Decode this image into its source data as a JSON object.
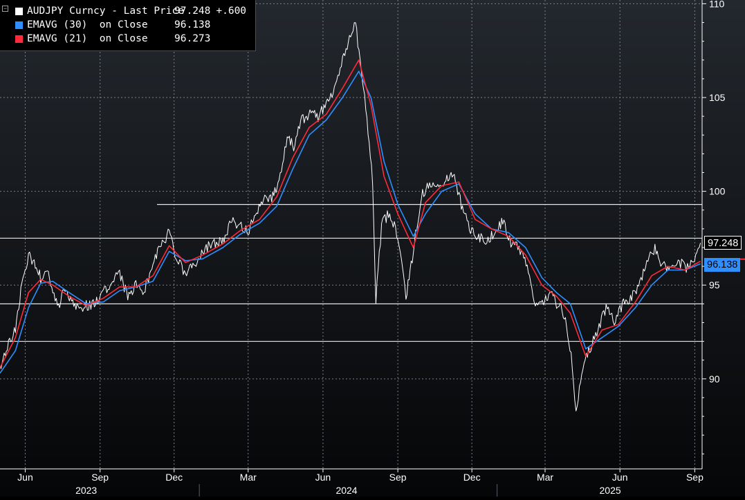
{
  "legend": {
    "rows": [
      {
        "label": "AUDJPY Curncy - Last Price",
        "value": "97.248",
        "extra": "+.600",
        "color": "#ffffff"
      },
      {
        "label": "EMAVG (30)  on Close",
        "value": "96.138",
        "extra": "",
        "color": "#2f8fff"
      },
      {
        "label": "EMAVG (21)  on Close",
        "value": "96.273",
        "extra": "",
        "color": "#ff2a3a"
      }
    ]
  },
  "tags": {
    "last": {
      "text": "97.248",
      "value": 97.248,
      "bg": "#000000",
      "fg": "#ffffff"
    },
    "ema30": {
      "text": "96.138",
      "value": 96.138,
      "bg": "#2f8fff",
      "fg": "#000000"
    },
    "ema21": {
      "value": 96.273,
      "color": "#ff2a3a"
    }
  },
  "chart_data": {
    "type": "line",
    "ylim": [
      85.2,
      110.2
    ],
    "y_ticks": [
      90,
      95,
      100,
      105,
      110
    ],
    "y_tick_labels": [
      "90",
      "95",
      "100",
      "105",
      "110"
    ],
    "x_start": "2023-05-01",
    "x_end": "2025-09-10",
    "months": [
      {
        "label": "Jun",
        "date": "2023-06-01"
      },
      {
        "label": "Sep",
        "date": "2023-09-01"
      },
      {
        "label": "Dec",
        "date": "2023-12-01"
      },
      {
        "label": "Mar",
        "date": "2024-03-01"
      },
      {
        "label": "Jun",
        "date": "2024-06-01"
      },
      {
        "label": "Sep",
        "date": "2024-09-01"
      },
      {
        "label": "Dec",
        "date": "2024-12-01"
      },
      {
        "label": "Mar",
        "date": "2025-03-01"
      },
      {
        "label": "Jun",
        "date": "2025-06-01"
      },
      {
        "label": "Sep",
        "date": "2025-09-01"
      }
    ],
    "years": [
      {
        "label": "2023",
        "date": "2023-08-15"
      },
      {
        "label": "2024",
        "date": "2024-06-30"
      },
      {
        "label": "2025",
        "date": "2025-05-20"
      }
    ],
    "year_separators": [
      "2024-01-01",
      "2025-01-01"
    ],
    "horizontal_levels": [
      {
        "value": 97.5,
        "from": "2023-05-01"
      },
      {
        "value": 99.3,
        "from": "2023-11-10"
      },
      {
        "value": 94.0,
        "from": "2023-05-01"
      },
      {
        "value": 92.0,
        "from": "2023-05-01"
      }
    ],
    "grid": true,
    "legend_position": "top-left",
    "series": [
      {
        "name": "AUDJPY Curncy - Last Price",
        "color": "#ffffff",
        "points": [
          [
            "2023-05-01",
            90.5
          ],
          [
            "2023-05-10",
            91.8
          ],
          [
            "2023-05-20",
            92.6
          ],
          [
            "2023-05-28",
            95.2
          ],
          [
            "2023-06-05",
            96.6
          ],
          [
            "2023-06-12",
            96.2
          ],
          [
            "2023-06-20",
            95.4
          ],
          [
            "2023-06-28",
            95.8
          ],
          [
            "2023-07-05",
            94.6
          ],
          [
            "2023-07-12",
            93.8
          ],
          [
            "2023-07-20",
            94.9
          ],
          [
            "2023-07-28",
            94.2
          ],
          [
            "2023-08-05",
            93.7
          ],
          [
            "2023-08-15",
            93.9
          ],
          [
            "2023-08-25",
            94.0
          ],
          [
            "2023-09-05",
            94.7
          ],
          [
            "2023-09-15",
            95.1
          ],
          [
            "2023-09-25",
            95.6
          ],
          [
            "2023-10-05",
            94.4
          ],
          [
            "2023-10-15",
            95.0
          ],
          [
            "2023-10-25",
            94.7
          ],
          [
            "2023-11-05",
            96.0
          ],
          [
            "2023-11-15",
            97.2
          ],
          [
            "2023-11-25",
            97.8
          ],
          [
            "2023-12-05",
            96.3
          ],
          [
            "2023-12-15",
            95.6
          ],
          [
            "2023-12-28",
            96.1
          ],
          [
            "2024-01-08",
            97.0
          ],
          [
            "2024-01-18",
            97.2
          ],
          [
            "2024-01-30",
            97.4
          ],
          [
            "2024-02-10",
            98.4
          ],
          [
            "2024-02-20",
            98.2
          ],
          [
            "2024-03-01",
            97.9
          ],
          [
            "2024-03-10",
            98.8
          ],
          [
            "2024-03-20",
            99.5
          ],
          [
            "2024-03-30",
            99.6
          ],
          [
            "2024-04-08",
            100.5
          ],
          [
            "2024-04-18",
            103.0
          ],
          [
            "2024-04-26",
            102.4
          ],
          [
            "2024-05-06",
            103.8
          ],
          [
            "2024-05-16",
            104.2
          ],
          [
            "2024-05-26",
            104.0
          ],
          [
            "2024-06-05",
            104.7
          ],
          [
            "2024-06-15",
            105.5
          ],
          [
            "2024-06-25",
            107.0
          ],
          [
            "2024-07-05",
            108.2
          ],
          [
            "2024-07-11",
            108.9
          ],
          [
            "2024-07-18",
            106.6
          ],
          [
            "2024-07-25",
            103.8
          ],
          [
            "2024-08-01",
            100.6
          ],
          [
            "2024-08-05",
            94.2
          ],
          [
            "2024-08-12",
            98.2
          ],
          [
            "2024-08-22",
            98.9
          ],
          [
            "2024-09-01",
            97.6
          ],
          [
            "2024-09-11",
            94.3
          ],
          [
            "2024-09-20",
            96.8
          ],
          [
            "2024-09-30",
            99.8
          ],
          [
            "2024-10-10",
            100.3
          ],
          [
            "2024-10-20",
            100.5
          ],
          [
            "2024-10-30",
            100.6
          ],
          [
            "2024-11-08",
            100.9
          ],
          [
            "2024-11-18",
            99.3
          ],
          [
            "2024-11-28",
            98.0
          ],
          [
            "2024-12-08",
            97.6
          ],
          [
            "2024-12-18",
            97.4
          ],
          [
            "2024-12-28",
            97.7
          ],
          [
            "2025-01-08",
            98.4
          ],
          [
            "2025-01-18",
            97.3
          ],
          [
            "2025-01-28",
            96.9
          ],
          [
            "2025-02-07",
            96.2
          ],
          [
            "2025-02-17",
            93.8
          ],
          [
            "2025-02-27",
            94.0
          ],
          [
            "2025-03-08",
            94.6
          ],
          [
            "2025-03-18",
            93.8
          ],
          [
            "2025-03-26",
            93.4
          ],
          [
            "2025-04-02",
            91.2
          ],
          [
            "2025-04-08",
            88.0
          ],
          [
            "2025-04-15",
            90.5
          ],
          [
            "2025-04-25",
            91.6
          ],
          [
            "2025-05-05",
            92.7
          ],
          [
            "2025-05-15",
            93.8
          ],
          [
            "2025-05-25",
            93.0
          ],
          [
            "2025-06-04",
            94.0
          ],
          [
            "2025-06-14",
            94.3
          ],
          [
            "2025-06-24",
            94.9
          ],
          [
            "2025-07-04",
            96.2
          ],
          [
            "2025-07-14",
            96.9
          ],
          [
            "2025-07-24",
            96.0
          ],
          [
            "2025-08-03",
            95.8
          ],
          [
            "2025-08-13",
            96.2
          ],
          [
            "2025-08-23",
            95.9
          ],
          [
            "2025-09-02",
            96.6
          ],
          [
            "2025-09-08",
            97.248
          ]
        ]
      },
      {
        "name": "EMAVG (30)  on Close",
        "color": "#2f8fff",
        "points": [
          [
            "2023-05-01",
            90.3
          ],
          [
            "2023-05-20",
            91.5
          ],
          [
            "2023-06-05",
            93.8
          ],
          [
            "2023-06-20",
            95.1
          ],
          [
            "2023-07-05",
            95.2
          ],
          [
            "2023-07-25",
            94.6
          ],
          [
            "2023-08-15",
            94.0
          ],
          [
            "2023-09-05",
            94.1
          ],
          [
            "2023-09-25",
            94.7
          ],
          [
            "2023-10-15",
            94.9
          ],
          [
            "2023-11-05",
            95.2
          ],
          [
            "2023-11-25",
            96.8
          ],
          [
            "2023-12-15",
            96.3
          ],
          [
            "2024-01-05",
            96.4
          ],
          [
            "2024-01-30",
            97.0
          ],
          [
            "2024-02-20",
            97.7
          ],
          [
            "2024-03-15",
            98.3
          ],
          [
            "2024-04-05",
            99.2
          ],
          [
            "2024-04-25",
            101.2
          ],
          [
            "2024-05-15",
            103.0
          ],
          [
            "2024-06-05",
            103.8
          ],
          [
            "2024-06-25",
            105.0
          ],
          [
            "2024-07-15",
            106.4
          ],
          [
            "2024-07-30",
            105.0
          ],
          [
            "2024-08-15",
            101.6
          ],
          [
            "2024-09-01",
            99.3
          ],
          [
            "2024-09-20",
            97.6
          ],
          [
            "2024-10-05",
            98.8
          ],
          [
            "2024-10-25",
            100.0
          ],
          [
            "2024-11-15",
            100.4
          ],
          [
            "2024-12-05",
            98.8
          ],
          [
            "2024-12-25",
            98.0
          ],
          [
            "2025-01-15",
            97.8
          ],
          [
            "2025-02-05",
            97.0
          ],
          [
            "2025-02-25",
            95.4
          ],
          [
            "2025-03-15",
            94.6
          ],
          [
            "2025-04-01",
            94.0
          ],
          [
            "2025-04-20",
            91.6
          ],
          [
            "2025-05-10",
            92.2
          ],
          [
            "2025-05-30",
            92.8
          ],
          [
            "2025-06-20",
            93.8
          ],
          [
            "2025-07-10",
            95.0
          ],
          [
            "2025-07-30",
            95.8
          ],
          [
            "2025-08-20",
            95.8
          ],
          [
            "2025-09-08",
            96.138
          ]
        ]
      },
      {
        "name": "EMAVG (21)  on Close",
        "color": "#ff2a3a",
        "points": [
          [
            "2023-05-01",
            90.6
          ],
          [
            "2023-05-20",
            92.2
          ],
          [
            "2023-06-05",
            94.6
          ],
          [
            "2023-06-20",
            95.3
          ],
          [
            "2023-07-05",
            95.0
          ],
          [
            "2023-07-25",
            94.4
          ],
          [
            "2023-08-15",
            93.9
          ],
          [
            "2023-09-05",
            94.3
          ],
          [
            "2023-09-25",
            94.9
          ],
          [
            "2023-10-15",
            94.9
          ],
          [
            "2023-11-05",
            95.5
          ],
          [
            "2023-11-25",
            97.1
          ],
          [
            "2023-12-15",
            96.2
          ],
          [
            "2024-01-05",
            96.6
          ],
          [
            "2024-01-30",
            97.2
          ],
          [
            "2024-02-20",
            97.9
          ],
          [
            "2024-03-15",
            98.5
          ],
          [
            "2024-04-05",
            99.7
          ],
          [
            "2024-04-25",
            101.8
          ],
          [
            "2024-05-15",
            103.4
          ],
          [
            "2024-06-05",
            104.1
          ],
          [
            "2024-06-25",
            105.5
          ],
          [
            "2024-07-15",
            107.0
          ],
          [
            "2024-07-30",
            104.6
          ],
          [
            "2024-08-15",
            100.8
          ],
          [
            "2024-09-01",
            98.8
          ],
          [
            "2024-09-20",
            97.0
          ],
          [
            "2024-10-05",
            99.4
          ],
          [
            "2024-10-25",
            100.3
          ],
          [
            "2024-11-15",
            100.5
          ],
          [
            "2024-12-05",
            98.5
          ],
          [
            "2024-12-25",
            98.0
          ],
          [
            "2025-01-15",
            97.6
          ],
          [
            "2025-02-05",
            96.6
          ],
          [
            "2025-02-25",
            95.0
          ],
          [
            "2025-03-15",
            94.4
          ],
          [
            "2025-04-01",
            93.5
          ],
          [
            "2025-04-20",
            91.2
          ],
          [
            "2025-05-10",
            92.6
          ],
          [
            "2025-05-30",
            92.9
          ],
          [
            "2025-06-20",
            94.1
          ],
          [
            "2025-07-10",
            95.5
          ],
          [
            "2025-07-30",
            96.0
          ],
          [
            "2025-08-20",
            95.8
          ],
          [
            "2025-09-08",
            96.273
          ]
        ]
      }
    ]
  }
}
